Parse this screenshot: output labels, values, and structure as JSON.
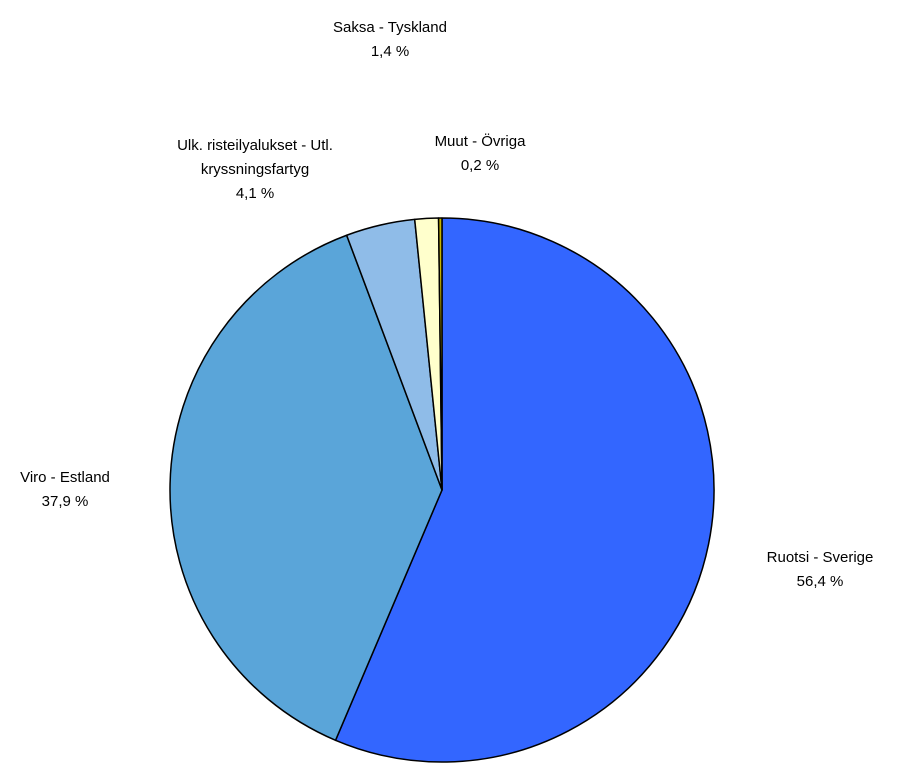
{
  "chart_data": {
    "type": "pie",
    "categories": [
      "Ruotsi - Sverige",
      "Viro - Estland",
      "Ulk. risteilyalukset - Utl. kryssningsfartyg",
      "Saksa - Tyskland",
      "Muut - Övriga"
    ],
    "values": [
      56.4,
      37.9,
      4.1,
      1.4,
      0.2
    ],
    "value_labels": [
      "56,4 %",
      "37,9 %",
      "4,1 %",
      "1,4 %",
      "0,2 %"
    ],
    "colors": [
      "#3366ff",
      "#5aa5d9",
      "#8fbce8",
      "#ffffcc",
      "#c8b400"
    ]
  }
}
